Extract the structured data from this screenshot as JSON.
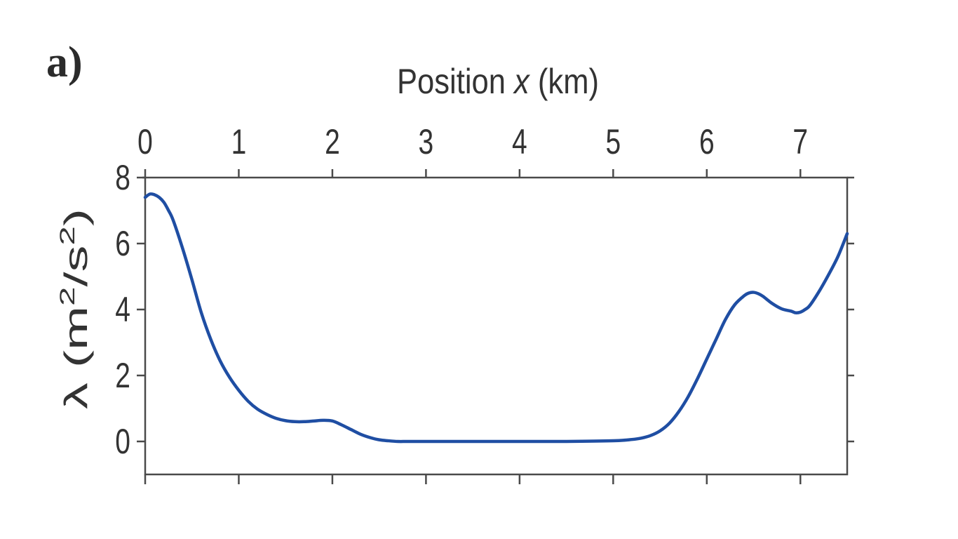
{
  "panel_label": "a)",
  "chart_data": {
    "type": "line",
    "xlabel": "Position x (km)",
    "xlabel_parts": {
      "pre": "Position ",
      "var": "x",
      "post": " (km)"
    },
    "ylabel": "λ (m²/s²)",
    "ylabel_parts": {
      "pre": "λ (m",
      "sup1": "2",
      "mid": "/s",
      "sup2": "2",
      "post": ")"
    },
    "xlim": [
      0,
      7.5
    ],
    "ylim": [
      -1,
      8
    ],
    "x_ticks": [
      0,
      1,
      2,
      3,
      4,
      5,
      6,
      7
    ],
    "x_tick_labels": [
      "0",
      "1",
      "2",
      "3",
      "4",
      "5",
      "6",
      "7"
    ],
    "y_ticks": [
      0,
      2,
      4,
      6,
      8
    ],
    "y_tick_labels": [
      "0",
      "2",
      "4",
      "6",
      "8"
    ],
    "x_axis_position": "top",
    "grid": false,
    "series": [
      {
        "color": "#1f4ea3",
        "x": [
          0,
          0.05,
          0.1,
          0.15,
          0.2,
          0.25,
          0.3,
          0.4,
          0.5,
          0.6,
          0.7,
          0.8,
          0.9,
          1.0,
          1.1,
          1.2,
          1.3,
          1.4,
          1.5,
          1.6,
          1.7,
          1.8,
          1.9,
          2.0,
          2.1,
          2.2,
          2.3,
          2.4,
          2.5,
          2.6,
          2.7,
          2.8,
          3.0,
          3.5,
          4.0,
          4.5,
          5.0,
          5.2,
          5.3,
          5.4,
          5.5,
          5.6,
          5.7,
          5.8,
          5.9,
          6.0,
          6.1,
          6.2,
          6.3,
          6.4,
          6.45,
          6.5,
          6.55,
          6.6,
          6.7,
          6.8,
          6.9,
          6.95,
          7.0,
          7.05,
          7.1,
          7.2,
          7.3,
          7.4,
          7.5
        ],
        "y": [
          7.4,
          7.5,
          7.48,
          7.4,
          7.25,
          7.0,
          6.7,
          5.85,
          4.9,
          3.9,
          3.1,
          2.45,
          1.95,
          1.55,
          1.22,
          0.98,
          0.82,
          0.7,
          0.63,
          0.6,
          0.6,
          0.62,
          0.64,
          0.62,
          0.5,
          0.36,
          0.22,
          0.12,
          0.05,
          0.02,
          0.0,
          0.0,
          0.0,
          0.0,
          0.0,
          0.0,
          0.02,
          0.06,
          0.1,
          0.18,
          0.32,
          0.55,
          0.9,
          1.35,
          1.9,
          2.5,
          3.1,
          3.7,
          4.15,
          4.42,
          4.5,
          4.52,
          4.48,
          4.4,
          4.18,
          4.02,
          3.95,
          3.9,
          3.92,
          4.0,
          4.12,
          4.55,
          5.05,
          5.6,
          6.3
        ]
      }
    ]
  }
}
